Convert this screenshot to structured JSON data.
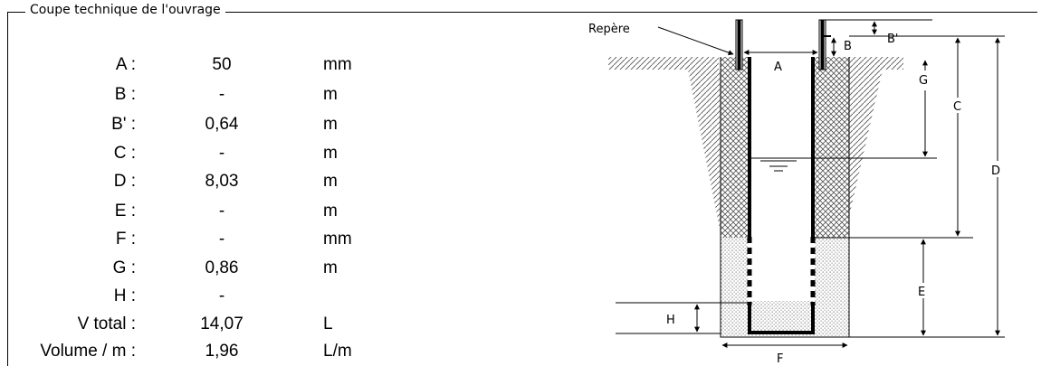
{
  "section": {
    "title": "Coupe technique de l'ouvrage"
  },
  "rows": [
    {
      "label": "A :",
      "value": "50",
      "unit": "mm"
    },
    {
      "label": "B :",
      "value": "-",
      "unit": "m"
    },
    {
      "label": "B' :",
      "value": "0,64",
      "unit": "m"
    },
    {
      "label": "C :",
      "value": "-",
      "unit": "m"
    },
    {
      "label": "D :",
      "value": "8,03",
      "unit": "m"
    },
    {
      "label": "E :",
      "value": "-",
      "unit": "m"
    },
    {
      "label": "F :",
      "value": "-",
      "unit": "mm"
    },
    {
      "label": "G :",
      "value": "0,86",
      "unit": "m"
    },
    {
      "label": "H :",
      "value": "-",
      "unit": ""
    },
    {
      "label": "V total :",
      "value": "14,07",
      "unit": "L"
    },
    {
      "label": "Volume / m :",
      "value": "1,96",
      "unit": "L/m"
    }
  ],
  "diagram": {
    "repere": "Repère",
    "a": "A",
    "b": "B",
    "bprime": "B'",
    "c": "C",
    "d": "D",
    "e": "E",
    "f": "F",
    "g": "G",
    "h": "H"
  }
}
